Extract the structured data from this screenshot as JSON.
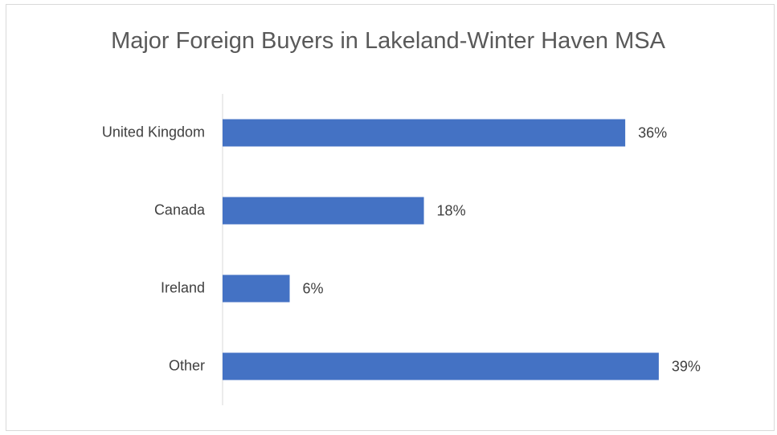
{
  "chart_data": {
    "type": "bar",
    "orientation": "horizontal",
    "title": "Major Foreign Buyers in Lakeland-Winter Haven MSA",
    "categories": [
      "United Kingdom",
      "Canada",
      "Ireland",
      "Other"
    ],
    "values": [
      36,
      18,
      6,
      39
    ],
    "value_labels": [
      "36%",
      "18%",
      "6%",
      "39%"
    ],
    "color": "#4472c4"
  }
}
